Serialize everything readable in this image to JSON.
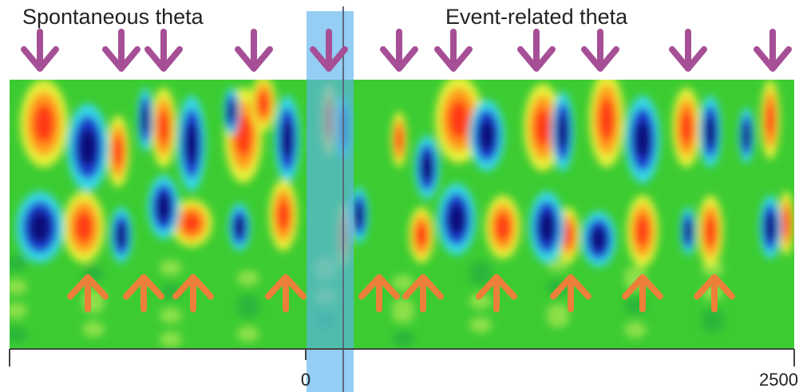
{
  "labels": {
    "left": "Spontaneous theta",
    "right": "Event-related theta"
  },
  "axis": {
    "ticks": [
      "0",
      "2500"
    ]
  }
}
